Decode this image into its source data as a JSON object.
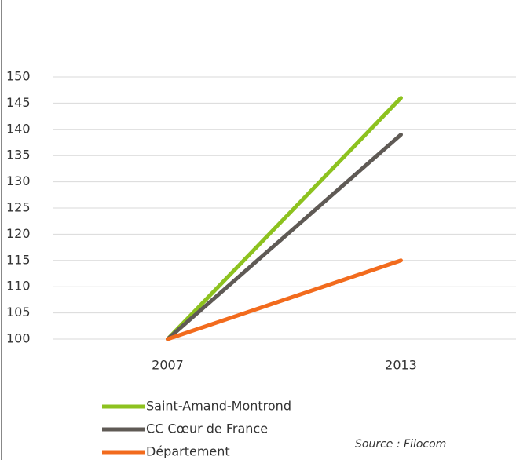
{
  "chart_data": {
    "type": "line",
    "categories": [
      "2007",
      "2013"
    ],
    "series": [
      {
        "name": "Saint-Amand-Montrond",
        "color": "#8dc21f",
        "values": [
          100,
          146
        ]
      },
      {
        "name": "CC Cœur de France",
        "color": "#5f5a55",
        "values": [
          100,
          139
        ]
      },
      {
        "name": "Département",
        "color": "#f26b1d",
        "values": [
          100,
          115
        ]
      }
    ],
    "ylim": [
      100,
      150
    ],
    "yticks": [
      100,
      105,
      110,
      115,
      120,
      125,
      130,
      135,
      140,
      145,
      150
    ],
    "grid": true,
    "legend": "bottom",
    "source": "Source : Filocom"
  }
}
